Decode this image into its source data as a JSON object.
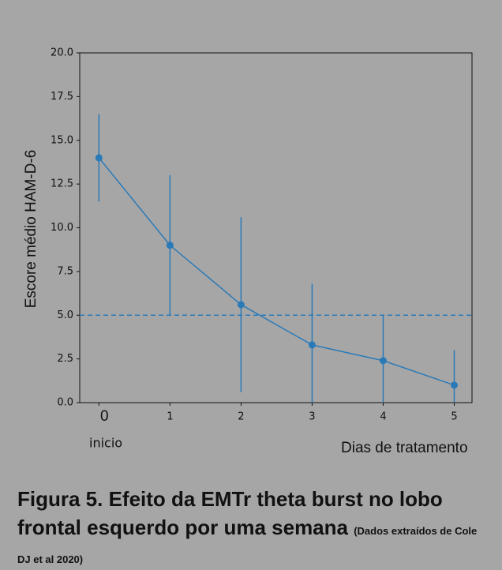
{
  "chart_data": {
    "type": "line",
    "x": [
      0,
      1,
      2,
      3,
      4,
      5
    ],
    "series": [
      {
        "color": "#2a7ab8",
        "values": [
          14,
          9,
          5.6,
          3.3,
          2.4,
          1.0
        ],
        "errors": [
          2.5,
          4,
          5,
          3.5,
          2.6,
          2
        ]
      }
    ],
    "xlim": [
      -0.27,
      5.25
    ],
    "xticks": [
      0,
      1,
      2,
      3,
      4,
      5
    ],
    "ylim": [
      0,
      20
    ],
    "yticks": [
      {
        "value": 0,
        "label": "0.0"
      },
      {
        "value": 2.5,
        "label": "2.5"
      },
      {
        "value": 5,
        "label": "5.0"
      },
      {
        "value": 7.5,
        "label": "7.5"
      },
      {
        "value": 10,
        "label": "10.0"
      },
      {
        "value": 12.5,
        "label": "12.5"
      },
      {
        "value": 15,
        "label": "15.0"
      },
      {
        "value": 17.5,
        "label": "17.5"
      },
      {
        "value": 20,
        "label": "20.0"
      }
    ],
    "ylabel": "Escore médio HAM-D-6",
    "xlabel": "Dias de tratamento",
    "x_annotation": "inicio",
    "hline": 5
  },
  "caption": {
    "title": "Figura 5. Efeito da EMTr theta burst no lobo frontal esquerdo por uma semana",
    "source": "(Dados extraídos de Cole DJ et al 2020)"
  }
}
